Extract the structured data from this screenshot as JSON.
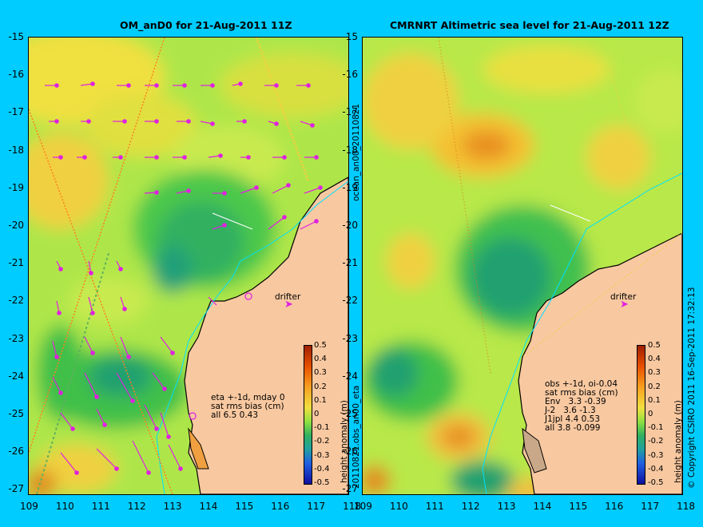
{
  "left_title": "OM_anD0 for 21-Aug-2011 11Z",
  "right_title": "CMRNRT Altimetric sea level  for 21-Aug-2011 12Z",
  "lat_ticks": [
    "-15",
    "-16",
    "-17",
    "-18",
    "-19",
    "-20",
    "-21",
    "-22",
    "-23",
    "-24",
    "-25",
    "-26",
    "-27"
  ],
  "lon_ticks": [
    "109",
    "110",
    "111",
    "112",
    "113",
    "114",
    "115",
    "116",
    "117",
    "118"
  ],
  "colorbar": {
    "label": "height anomaly (m)",
    "ticks": [
      "0.5",
      "0.4",
      "0.3",
      "0.2",
      "0.1",
      "0",
      "-0.1",
      "-0.2",
      "-0.3",
      "-0.4",
      "-0.5"
    ]
  },
  "left_annotation": "eta +-1d, mday 0\nsat rms bias (cm)\nall 6.5 0.43",
  "right_annotation": "obs +-1d, oi-0.04\nsat rms bias (cm)\nEnv   3.3 -0.39\nJ-2   3.6 -1.3\nJ1jpl 4.4 0.53\nall 3.8 -0.099",
  "drifter_label": "drifter",
  "side_label_top": "ocean_an00_20110821",
  "side_label_bottom": "20110821.obs_an00_eta",
  "copyright": "© Copyright CSIRO 2011   16-Sep-2011 17:32:13",
  "colors": {
    "background": "#00ccff",
    "land": "#f8c8a0",
    "vectors": "#e020e0",
    "coastline": "#000000",
    "shelf_contour": "#00e0ff"
  }
}
